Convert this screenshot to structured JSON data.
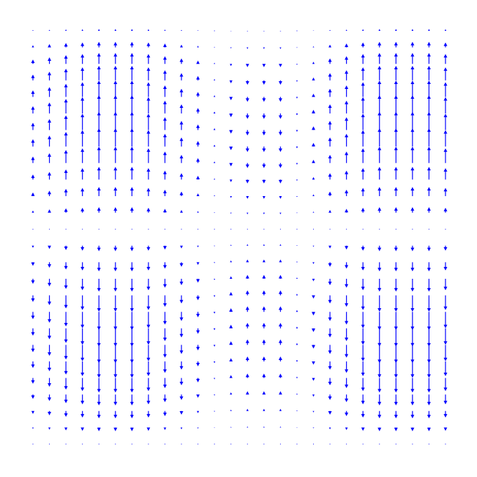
{
  "chart_data": {
    "type": "quiver",
    "color": "#0000ff",
    "x": [
      0,
      1,
      2,
      3,
      4,
      5,
      6,
      7,
      8,
      9,
      10,
      11,
      12,
      13,
      14,
      15,
      16,
      17,
      18,
      19,
      20,
      21,
      22,
      23,
      24,
      25
    ],
    "y": [
      25,
      24,
      23,
      22,
      21,
      20,
      19,
      18,
      17,
      16,
      15,
      14,
      13,
      12,
      11,
      10,
      9,
      8,
      7,
      6,
      5,
      4,
      3,
      2,
      1,
      0
    ],
    "xlim": [
      0,
      25
    ],
    "ylim": [
      0,
      25
    ],
    "v": [
      [
        0.04,
        0.06,
        0.08,
        0.09,
        0.1,
        0.1,
        0.1,
        0.09,
        0.07,
        0.05,
        0.03,
        0.01,
        -0.02,
        -0.03,
        -0.03,
        -0.03,
        -0.01,
        0.02,
        0.05,
        0.07,
        0.09,
        0.1,
        0.1,
        0.1,
        0.1,
        0.09
      ],
      [
        0.12,
        0.18,
        0.24,
        0.27,
        0.3,
        0.3,
        0.3,
        0.27,
        0.21,
        0.15,
        0.09,
        0.03,
        -0.06,
        -0.09,
        -0.09,
        -0.09,
        -0.03,
        0.06,
        0.15,
        0.21,
        0.27,
        0.3,
        0.3,
        0.3,
        0.3,
        0.27
      ],
      [
        0.24,
        0.36,
        0.48,
        0.54,
        0.6,
        0.6,
        0.6,
        0.54,
        0.42,
        0.3,
        0.18,
        0.06,
        -0.12,
        -0.18,
        -0.18,
        -0.18,
        -0.06,
        0.12,
        0.3,
        0.42,
        0.54,
        0.6,
        0.6,
        0.6,
        0.6,
        0.54
      ],
      [
        0.32,
        0.48,
        0.64,
        0.72,
        0.8,
        0.8,
        0.8,
        0.72,
        0.56,
        0.4,
        0.24,
        0.08,
        -0.16,
        -0.24,
        -0.24,
        -0.24,
        -0.08,
        0.16,
        0.4,
        0.56,
        0.72,
        0.8,
        0.8,
        0.8,
        0.8,
        0.72
      ],
      [
        0.36,
        0.54,
        0.72,
        0.81,
        0.9,
        0.9,
        0.9,
        0.81,
        0.63,
        0.45,
        0.27,
        0.09,
        -0.18,
        -0.27,
        -0.27,
        -0.27,
        -0.09,
        0.18,
        0.45,
        0.63,
        0.81,
        0.9,
        0.9,
        0.9,
        0.9,
        0.81
      ],
      [
        0.4,
        0.6,
        0.8,
        0.9,
        1,
        1,
        1,
        0.9,
        0.7,
        0.5,
        0.3,
        0.1,
        -0.2,
        -0.3,
        -0.3,
        -0.3,
        -0.1,
        0.2,
        0.5,
        0.7,
        0.9,
        1,
        1,
        1,
        1,
        0.9
      ],
      [
        0.4,
        0.6,
        0.8,
        0.9,
        1,
        1,
        1,
        0.9,
        0.7,
        0.5,
        0.3,
        0.1,
        -0.2,
        -0.3,
        -0.3,
        -0.3,
        -0.1,
        0.2,
        0.5,
        0.7,
        0.9,
        1,
        1,
        1,
        1,
        0.9
      ],
      [
        0.4,
        0.6,
        0.8,
        0.9,
        1,
        1,
        1,
        0.9,
        0.7,
        0.5,
        0.3,
        0.1,
        -0.2,
        -0.3,
        -0.3,
        -0.3,
        -0.1,
        0.2,
        0.5,
        0.7,
        0.9,
        1,
        1,
        1,
        1,
        0.9
      ],
      [
        0.36,
        0.54,
        0.72,
        0.81,
        0.9,
        0.9,
        0.9,
        0.81,
        0.63,
        0.45,
        0.27,
        0.09,
        -0.18,
        -0.27,
        -0.27,
        -0.27,
        -0.09,
        0.18,
        0.45,
        0.63,
        0.81,
        0.9,
        0.9,
        0.9,
        0.9,
        0.81
      ],
      [
        0.28,
        0.42,
        0.56,
        0.63,
        0.7,
        0.7,
        0.7,
        0.63,
        0.49,
        0.35,
        0.21,
        0.07,
        -0.14,
        -0.21,
        -0.21,
        -0.21,
        -0.07,
        0.14,
        0.35,
        0.49,
        0.63,
        0.7,
        0.7,
        0.7,
        0.7,
        0.63
      ],
      [
        0.2,
        0.3,
        0.4,
        0.45,
        0.5,
        0.5,
        0.5,
        0.45,
        0.35,
        0.25,
        0.15,
        0.05,
        -0.1,
        -0.15,
        -0.15,
        -0.15,
        -0.05,
        0.1,
        0.25,
        0.35,
        0.45,
        0.5,
        0.5,
        0.5,
        0.5,
        0.45
      ],
      [
        0.12,
        0.18,
        0.24,
        0.27,
        0.3,
        0.3,
        0.3,
        0.27,
        0.21,
        0.15,
        0.09,
        0.03,
        -0.06,
        -0.09,
        -0.09,
        -0.09,
        -0.03,
        0.06,
        0.15,
        0.21,
        0.27,
        0.3,
        0.3,
        0.3,
        0.3,
        0.27
      ],
      [
        0,
        0,
        0,
        0,
        0,
        0,
        0,
        0,
        0,
        0,
        0,
        0,
        0,
        0,
        0,
        0,
        0,
        0,
        0,
        0,
        0,
        0,
        0,
        0,
        0,
        0
      ],
      [
        -0.12,
        -0.18,
        -0.24,
        -0.27,
        -0.3,
        -0.3,
        -0.3,
        -0.27,
        -0.21,
        -0.15,
        -0.09,
        -0.03,
        0.06,
        0.09,
        0.09,
        0.09,
        0.03,
        -0.06,
        -0.15,
        -0.21,
        -0.27,
        -0.3,
        -0.3,
        -0.3,
        -0.3,
        -0.27
      ],
      [
        -0.2,
        -0.3,
        -0.4,
        -0.45,
        -0.5,
        -0.5,
        -0.5,
        -0.45,
        -0.35,
        -0.25,
        -0.15,
        -0.05,
        0.1,
        0.15,
        0.15,
        0.15,
        0.05,
        -0.1,
        -0.25,
        -0.35,
        -0.45,
        -0.5,
        -0.5,
        -0.5,
        -0.5,
        -0.45
      ],
      [
        -0.28,
        -0.42,
        -0.56,
        -0.63,
        -0.7,
        -0.7,
        -0.7,
        -0.63,
        -0.49,
        -0.35,
        -0.21,
        -0.07,
        0.14,
        0.21,
        0.21,
        0.21,
        0.07,
        -0.14,
        -0.35,
        -0.49,
        -0.63,
        -0.7,
        -0.7,
        -0.7,
        -0.7,
        -0.63
      ],
      [
        -0.36,
        -0.54,
        -0.72,
        -0.81,
        -0.9,
        -0.9,
        -0.9,
        -0.81,
        -0.63,
        -0.45,
        -0.27,
        -0.09,
        0.18,
        0.27,
        0.27,
        0.27,
        0.09,
        -0.18,
        -0.45,
        -0.63,
        -0.81,
        -0.9,
        -0.9,
        -0.9,
        -0.9,
        -0.81
      ],
      [
        -0.4,
        -0.6,
        -0.8,
        -0.9,
        -1,
        -1,
        -1,
        -0.9,
        -0.7,
        -0.5,
        -0.3,
        -0.1,
        0.2,
        0.3,
        0.3,
        0.3,
        0.1,
        -0.2,
        -0.5,
        -0.7,
        -0.9,
        -1,
        -1,
        -1,
        -1,
        -0.9
      ],
      [
        -0.4,
        -0.6,
        -0.8,
        -0.9,
        -1,
        -1,
        -1,
        -0.9,
        -0.7,
        -0.5,
        -0.3,
        -0.1,
        0.2,
        0.3,
        0.3,
        0.3,
        0.1,
        -0.2,
        -0.5,
        -0.7,
        -0.9,
        -1,
        -1,
        -1,
        -1,
        -0.9
      ],
      [
        -0.4,
        -0.6,
        -0.8,
        -0.9,
        -1,
        -1,
        -1,
        -0.9,
        -0.7,
        -0.5,
        -0.3,
        -0.1,
        0.2,
        0.3,
        0.3,
        0.3,
        0.1,
        -0.2,
        -0.5,
        -0.7,
        -0.9,
        -1,
        -1,
        -1,
        -1,
        -0.9
      ],
      [
        -0.36,
        -0.54,
        -0.72,
        -0.81,
        -0.9,
        -0.9,
        -0.9,
        -0.81,
        -0.63,
        -0.45,
        -0.27,
        -0.09,
        0.18,
        0.27,
        0.27,
        0.27,
        0.09,
        -0.18,
        -0.45,
        -0.63,
        -0.81,
        -0.9,
        -0.9,
        -0.9,
        -0.9,
        -0.81
      ],
      [
        -0.32,
        -0.48,
        -0.64,
        -0.72,
        -0.8,
        -0.8,
        -0.8,
        -0.72,
        -0.56,
        -0.4,
        -0.24,
        -0.08,
        0.16,
        0.24,
        0.24,
        0.24,
        0.08,
        -0.16,
        -0.4,
        -0.56,
        -0.72,
        -0.8,
        -0.8,
        -0.8,
        -0.8,
        -0.72
      ],
      [
        -0.24,
        -0.36,
        -0.48,
        -0.54,
        -0.6,
        -0.6,
        -0.6,
        -0.54,
        -0.42,
        -0.3,
        -0.18,
        -0.06,
        0.12,
        0.18,
        0.18,
        0.18,
        0.06,
        -0.12,
        -0.3,
        -0.42,
        -0.54,
        -0.6,
        -0.6,
        -0.6,
        -0.6,
        -0.54
      ],
      [
        -0.16,
        -0.24,
        -0.32,
        -0.36,
        -0.4,
        -0.4,
        -0.4,
        -0.36,
        -0.28,
        -0.2,
        -0.12,
        -0.04,
        0.08,
        0.12,
        0.12,
        0.12,
        0.04,
        -0.08,
        -0.2,
        -0.28,
        -0.36,
        -0.4,
        -0.4,
        -0.4,
        -0.4,
        -0.36
      ],
      [
        -0.08,
        -0.12,
        -0.16,
        -0.18,
        -0.2,
        -0.2,
        -0.2,
        -0.18,
        -0.14,
        -0.1,
        -0.06,
        -0.02,
        0.04,
        0.06,
        0.06,
        0.06,
        0.02,
        -0.04,
        -0.1,
        -0.14,
        -0.18,
        -0.2,
        -0.2,
        -0.2,
        -0.2,
        -0.18
      ],
      [
        0,
        0,
        0,
        0,
        0,
        0,
        0,
        0,
        0,
        0,
        0,
        0,
        0,
        0,
        0,
        0,
        0,
        0,
        0,
        0,
        0,
        0,
        0,
        0,
        0,
        0
      ]
    ]
  }
}
